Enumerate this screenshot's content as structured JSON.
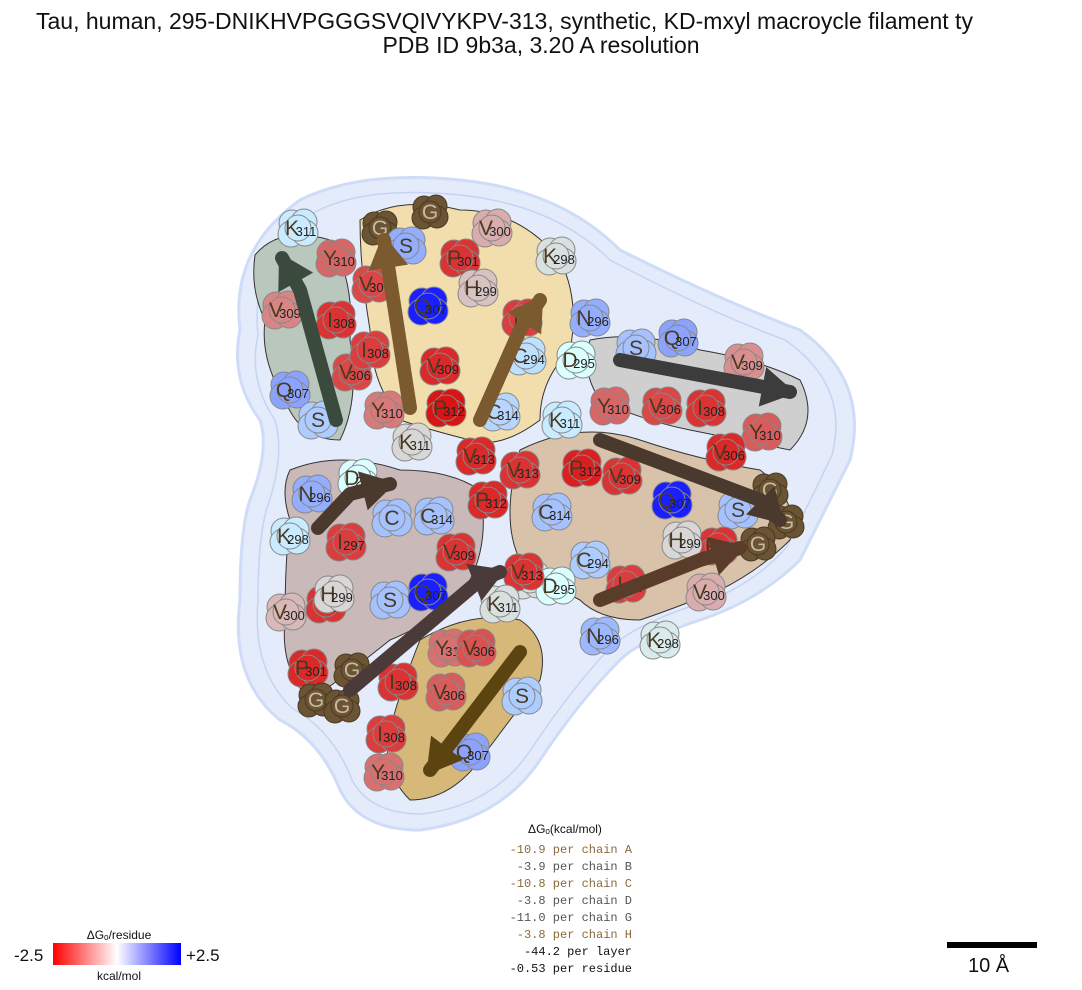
{
  "title": {
    "line1": "Tau, human, 295-DNIKHVPGGGSVQIVYKPV-313, synthetic, KD-mxyl macroycle filament ty",
    "line2": "PDB ID 9b3a, 3.20 A resolution"
  },
  "chain_colors": {
    "A": "#7a5a2e",
    "B": "#3a4a3c",
    "C": "#8a6a3c",
    "D": "#333333",
    "E": "#5a4a3a",
    "F": "#4a3a2e",
    "G": "#3c3c3c",
    "H": "#5c4410"
  },
  "legend": {
    "header": "ΔGₒ(kcal/mol)",
    "rows": [
      {
        "text": "-10.9 per chain A",
        "color": "#8a6a3c"
      },
      {
        "text": "-3.9 per chain B",
        "color": "#555555"
      },
      {
        "text": "-10.8 per chain C",
        "color": "#8a6a3c"
      },
      {
        "text": "-3.8 per chain D",
        "color": "#555555"
      },
      {
        "text": "-11.0 per chain G",
        "color": "#555555"
      },
      {
        "text": "-3.8 per chain H",
        "color": "#8a6a3c"
      },
      {
        "text": "-44.2 per layer",
        "color": "#111111"
      },
      {
        "text": "-0.53 per residue",
        "color": "#111111"
      }
    ]
  },
  "colorbar": {
    "title": "ΔGₒ/residue",
    "min": "-2.5",
    "max": "+2.5",
    "unit": "kcal/mol"
  },
  "scalebar_label": "10 Å",
  "residues": [
    {
      "l": "K",
      "n": "311",
      "dg": 0.2
    },
    {
      "l": "Y",
      "n": "310",
      "dg": -1.5
    },
    {
      "l": "V",
      "n": "309",
      "dg": -1.2
    },
    {
      "l": "I",
      "n": "308",
      "dg": -2.0
    },
    {
      "l": "V",
      "n": "306",
      "dg": -1.8
    },
    {
      "l": "Q",
      "n": "307",
      "dg": 0.9
    },
    {
      "l": "S",
      "n": "",
      "dg": 0.5
    },
    {
      "l": "G",
      "n": "",
      "dg": 0
    },
    {
      "l": "G",
      "n": "",
      "dg": 0
    },
    {
      "l": "V",
      "n": "300",
      "dg": -0.8
    },
    {
      "l": "S",
      "n": "",
      "dg": 0.8
    },
    {
      "l": "P",
      "n": "301",
      "dg": -2.0
    },
    {
      "l": "K",
      "n": "298",
      "dg": -0.3
    },
    {
      "l": "V",
      "n": "306",
      "dg": -1.8
    },
    {
      "l": "H",
      "n": "299",
      "dg": -0.6
    },
    {
      "l": "Q",
      "n": "307",
      "dg": 2.2
    },
    {
      "l": "I",
      "n": "297",
      "dg": -1.9
    },
    {
      "l": "N",
      "n": "296",
      "dg": 0.8
    },
    {
      "l": "I",
      "n": "308",
      "dg": -1.9
    },
    {
      "l": "V",
      "n": "309",
      "dg": -2.1
    },
    {
      "l": "C",
      "n": "294",
      "dg": 0.3
    },
    {
      "l": "D",
      "n": "295",
      "dg": 0
    },
    {
      "l": "Y",
      "n": "310",
      "dg": -1.3
    },
    {
      "l": "P",
      "n": "312",
      "dg": -2.3
    },
    {
      "l": "K",
      "n": "311",
      "dg": -0.4
    },
    {
      "l": "C",
      "n": "314",
      "dg": 0.4
    },
    {
      "l": "V",
      "n": "313",
      "dg": -2.1
    },
    {
      "l": "S",
      "n": "",
      "dg": 0.6
    },
    {
      "l": "Q",
      "n": "307",
      "dg": 0.9
    },
    {
      "l": "V",
      "n": "309",
      "dg": -1.1
    },
    {
      "l": "Y",
      "n": "310",
      "dg": -1.6
    },
    {
      "l": "V",
      "n": "306",
      "dg": -1.8
    },
    {
      "l": "I",
      "n": "308",
      "dg": -2.0
    },
    {
      "l": "I",
      "n": "308",
      "dg": -2.0
    },
    {
      "l": "K",
      "n": "311",
      "dg": 0.2
    },
    {
      "l": "Y",
      "n": "310",
      "dg": -1.5
    },
    {
      "l": "V",
      "n": "306",
      "dg": -2.1
    },
    {
      "l": "S",
      "n": "",
      "dg": 0.6
    },
    {
      "l": "K",
      "n": "311",
      "dg": -0.3
    },
    {
      "l": "V",
      "n": "313",
      "dg": -2.0
    },
    {
      "l": "P",
      "n": "312",
      "dg": -2.2
    },
    {
      "l": "V",
      "n": "309",
      "dg": -2.0
    },
    {
      "l": "Q",
      "n": "307",
      "dg": 2.2
    },
    {
      "l": "G",
      "n": "",
      "dg": 0
    },
    {
      "l": "G",
      "n": "",
      "dg": 0
    },
    {
      "l": "G",
      "n": "",
      "dg": 0
    },
    {
      "l": "P",
      "n": "301",
      "dg": -2.0
    },
    {
      "l": "H",
      "n": "299",
      "dg": -0.4
    },
    {
      "l": "V",
      "n": "300",
      "dg": -0.8
    },
    {
      "l": "I",
      "n": "297",
      "dg": -1.9
    },
    {
      "l": "N",
      "n": "296",
      "dg": 0.7
    },
    {
      "l": "K",
      "n": "298",
      "dg": -0.2
    },
    {
      "l": "C",
      "n": "294",
      "dg": 0.5
    },
    {
      "l": "D",
      "n": "295",
      "dg": 0
    },
    {
      "l": "C",
      "n": "314",
      "dg": 0.6
    },
    {
      "l": "N",
      "n": "296",
      "dg": 0.8
    },
    {
      "l": "D",
      "n": "295",
      "dg": 0
    },
    {
      "l": "C",
      "n": "",
      "dg": 0.6
    },
    {
      "l": "C",
      "n": "314",
      "dg": 0.6
    },
    {
      "l": "I",
      "n": "297",
      "dg": -1.9
    },
    {
      "l": "K",
      "n": "298",
      "dg": 0.2
    },
    {
      "l": "H",
      "n": "299",
      "dg": -0.4
    },
    {
      "l": "V",
      "n": "300",
      "dg": -0.7
    },
    {
      "l": "P",
      "n": "301",
      "dg": -2.1
    },
    {
      "l": "G",
      "n": "",
      "dg": 0
    },
    {
      "l": "G",
      "n": "",
      "dg": 0
    },
    {
      "l": "G",
      "n": "",
      "dg": 0
    },
    {
      "l": "S",
      "n": "",
      "dg": 0.6
    },
    {
      "l": "Q",
      "n": "307",
      "dg": 2.2
    },
    {
      "l": "V",
      "n": "309",
      "dg": -2.0
    },
    {
      "l": "P",
      "n": "312",
      "dg": -2.1
    },
    {
      "l": "V",
      "n": "313",
      "dg": -2.0
    },
    {
      "l": "K",
      "n": "311",
      "dg": -0.3
    },
    {
      "l": "Y",
      "n": "310",
      "dg": -1.4
    },
    {
      "l": "I",
      "n": "308",
      "dg": -2.0
    },
    {
      "l": "V",
      "n": "306",
      "dg": -1.7
    },
    {
      "l": "V",
      "n": "306",
      "dg": -1.6
    },
    {
      "l": "S",
      "n": "",
      "dg": 0.5
    },
    {
      "l": "I",
      "n": "308",
      "dg": -1.9
    },
    {
      "l": "Q",
      "n": "307",
      "dg": 0.9
    },
    {
      "l": "Y",
      "n": "310",
      "dg": -1.4
    },
    {
      "l": "V",
      "n": "309",
      "dg": -1.2
    },
    {
      "l": "K",
      "n": "311",
      "dg": 0.2
    }
  ]
}
